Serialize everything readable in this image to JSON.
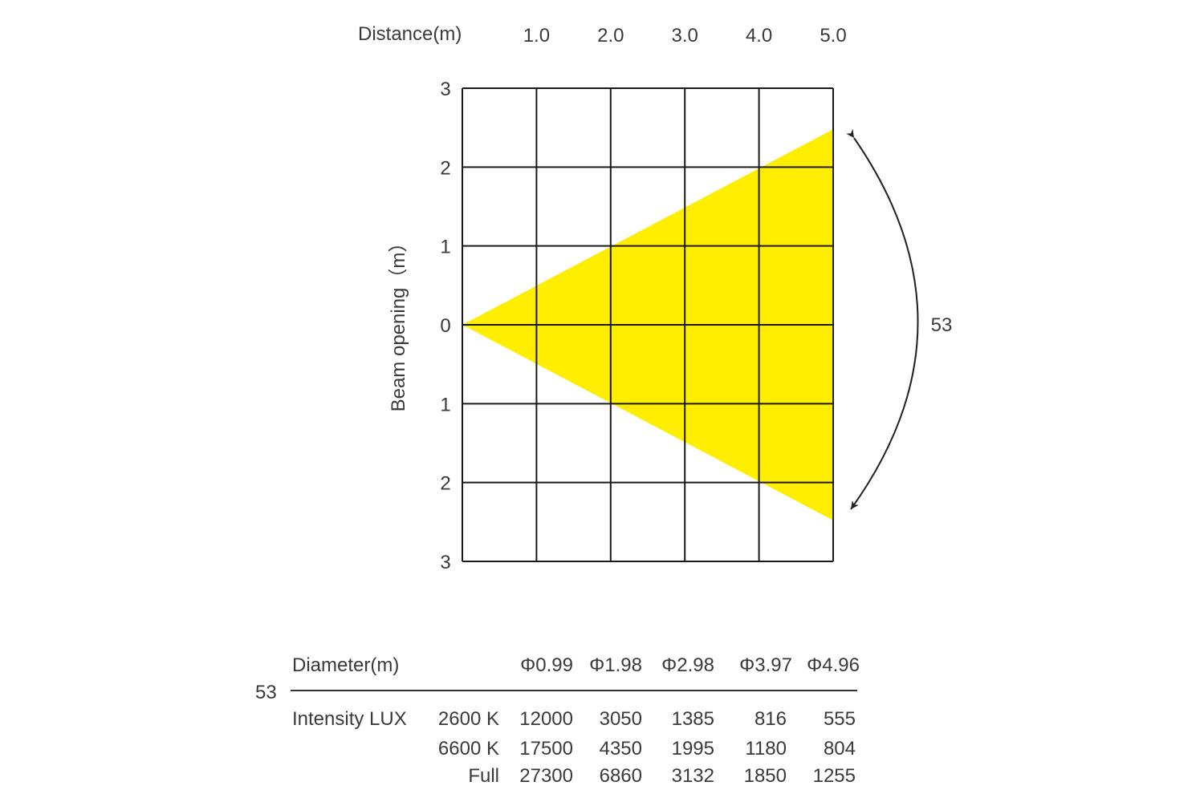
{
  "chart_data": {
    "type": "area",
    "title": "",
    "xlabel": "Distance(m)",
    "ylabel": "Beam opening（m）",
    "x_ticks": [
      "1.0",
      "2.0",
      "3.0",
      "4.0",
      "5.0"
    ],
    "y_ticks": [
      "3",
      "2",
      "1",
      "0",
      "1",
      "2",
      "3"
    ],
    "xlim": [
      0,
      5
    ],
    "ylim": [
      -3,
      3
    ],
    "grid": true,
    "beam_angle_label": "53",
    "beam_color": "#ffee00",
    "series": [
      {
        "x": [
          0,
          5
        ],
        "upper": [
          0,
          2.48
        ],
        "lower": [
          0,
          -2.48
        ]
      }
    ]
  },
  "table": {
    "angle": "53",
    "diameter_label": "Diameter(m)",
    "diameters": [
      "Φ0.99",
      "Φ1.98",
      "Φ2.98",
      "Φ3.97",
      "Φ4.96"
    ],
    "intensity_label": "Intensity LUX",
    "rows": [
      {
        "label": "2600 K",
        "values": [
          "12000",
          "3050",
          "1385",
          "816",
          "555"
        ]
      },
      {
        "label": "6600 K",
        "values": [
          "17500",
          "4350",
          "1995",
          "1180",
          "804"
        ]
      },
      {
        "label": "Full",
        "values": [
          "27300",
          "6860",
          "3132",
          "1850",
          "1255"
        ]
      }
    ]
  }
}
